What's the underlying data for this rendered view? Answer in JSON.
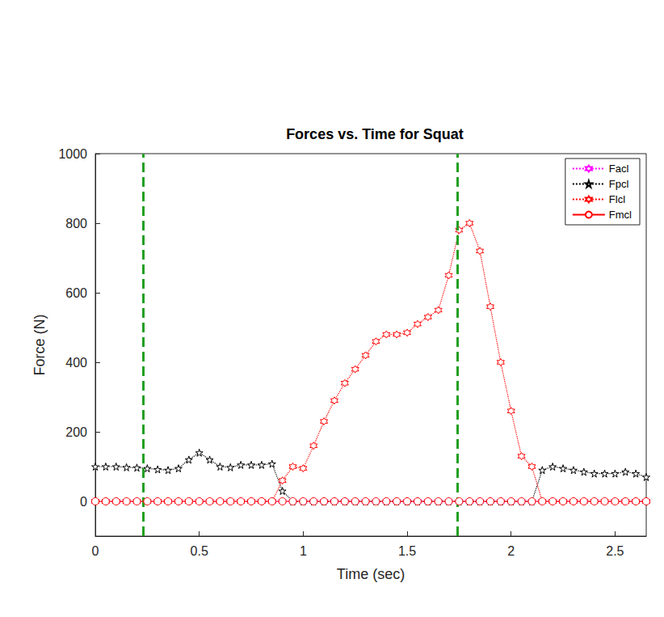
{
  "chart_data": {
    "type": "line",
    "title": "Forces vs. Time for Squat",
    "xlabel": "Time (sec)",
    "ylabel": "Force (N)",
    "x": [
      0,
      0.05,
      0.1,
      0.15,
      0.2,
      0.25,
      0.3,
      0.35,
      0.4,
      0.45,
      0.5,
      0.55,
      0.6,
      0.65,
      0.7,
      0.75,
      0.8,
      0.85,
      0.9,
      0.95,
      1.0,
      1.05,
      1.1,
      1.15,
      1.2,
      1.25,
      1.3,
      1.35,
      1.4,
      1.45,
      1.5,
      1.55,
      1.6,
      1.65,
      1.7,
      1.75,
      1.8,
      1.85,
      1.9,
      1.95,
      2.0,
      2.05,
      2.1,
      2.15,
      2.2,
      2.25,
      2.3,
      2.35,
      2.4,
      2.45,
      2.5,
      2.55,
      2.6,
      2.65
    ],
    "series": [
      {
        "name": "Facl",
        "color": "#ff00ff",
        "marker": "hexagram",
        "line_style": "dotted",
        "values": [
          0,
          0,
          0,
          0,
          0,
          0,
          0,
          0,
          0,
          0,
          0,
          0,
          0,
          0,
          0,
          0,
          0,
          0,
          0,
          0,
          0,
          0,
          0,
          0,
          0,
          0,
          0,
          0,
          0,
          0,
          0,
          0,
          0,
          0,
          0,
          0,
          0,
          0,
          0,
          0,
          0,
          0,
          0,
          0,
          0,
          0,
          0,
          0,
          0,
          0,
          0,
          0,
          0,
          0
        ]
      },
      {
        "name": "Fpcl",
        "color": "#000000",
        "marker": "star",
        "line_style": "dotted",
        "values": [
          100,
          100,
          100,
          98,
          97,
          95,
          92,
          90,
          95,
          120,
          140,
          120,
          100,
          98,
          105,
          105,
          105,
          108,
          30,
          0,
          0,
          0,
          0,
          0,
          0,
          0,
          0,
          0,
          0,
          0,
          0,
          0,
          0,
          0,
          0,
          0,
          0,
          0,
          0,
          0,
          0,
          0,
          0,
          90,
          100,
          95,
          90,
          85,
          80,
          80,
          80,
          85,
          80,
          70
        ]
      },
      {
        "name": "Flcl",
        "color": "#ff0000",
        "marker": "hexagram",
        "line_style": "dotted",
        "values": [
          0,
          0,
          0,
          0,
          0,
          0,
          0,
          0,
          0,
          0,
          0,
          0,
          0,
          0,
          0,
          0,
          0,
          0,
          60,
          100,
          95,
          160,
          230,
          290,
          340,
          380,
          420,
          460,
          480,
          480,
          485,
          510,
          530,
          550,
          650,
          780,
          800,
          720,
          560,
          400,
          260,
          130,
          100,
          0,
          0,
          0,
          0,
          0,
          0,
          0,
          0,
          0,
          0,
          0
        ]
      },
      {
        "name": "Fmcl",
        "color": "#ff0000",
        "marker": "circle",
        "line_style": "solid",
        "values": [
          0,
          0,
          0,
          0,
          0,
          0,
          0,
          0,
          0,
          0,
          0,
          0,
          0,
          0,
          0,
          0,
          0,
          0,
          0,
          0,
          0,
          0,
          0,
          0,
          0,
          0,
          0,
          0,
          0,
          0,
          0,
          0,
          0,
          0,
          0,
          0,
          0,
          0,
          0,
          0,
          0,
          0,
          0,
          0,
          0,
          0,
          0,
          0,
          0,
          0,
          0,
          0,
          0,
          0
        ]
      }
    ],
    "xlim": [
      0,
      2.65
    ],
    "xticks": [
      0,
      0.5,
      1,
      1.5,
      2,
      2.5
    ],
    "ylim": [
      -100,
      1000
    ],
    "yticks": [
      0,
      200,
      400,
      600,
      800,
      1000
    ],
    "grid": false,
    "legend": "upper right",
    "vlines": {
      "x": [
        0.23,
        1.74
      ],
      "color": "#22a022",
      "line_style": "dashed"
    }
  }
}
